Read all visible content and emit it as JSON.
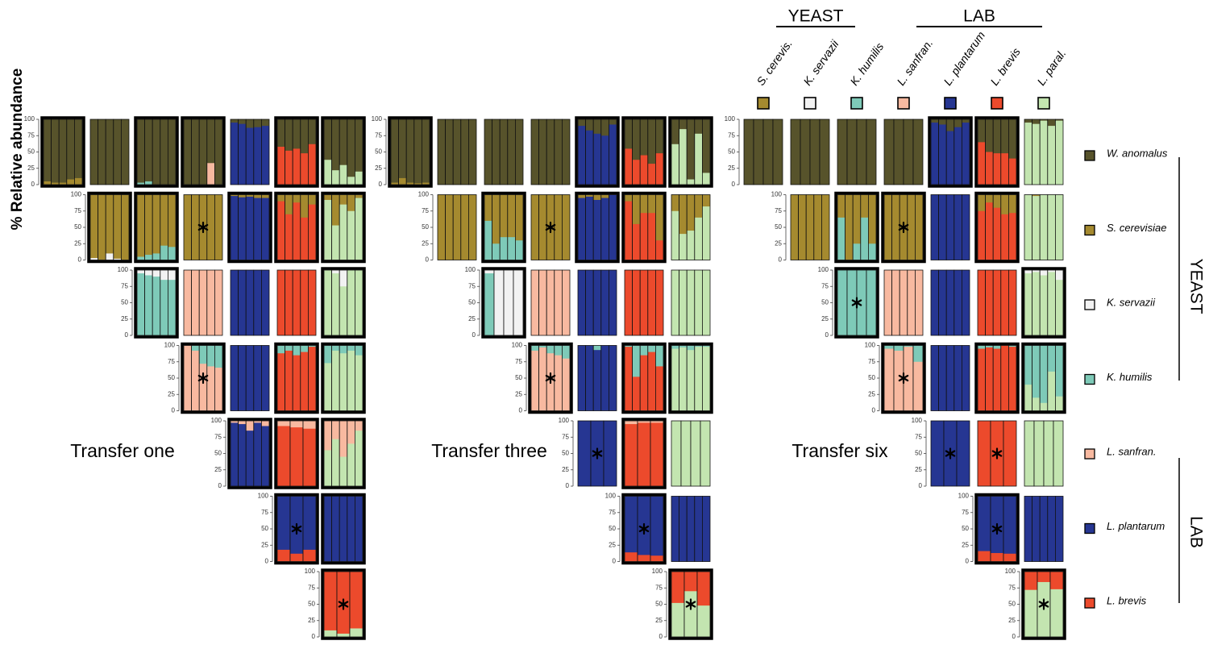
{
  "chart_data": {
    "type": "pairwise-stacked-bar-grid",
    "ylabel": "% Relative abundance",
    "ylim": [
      0,
      100
    ],
    "yticks": [
      0,
      25,
      50,
      75,
      100
    ],
    "groups": [
      {
        "label": "YEAST"
      },
      {
        "label": "LAB"
      }
    ],
    "columns": [
      {
        "label": "S. cerevis.",
        "color": "#a58a2f"
      },
      {
        "label": "K. servazii",
        "color": "#f2f2f2"
      },
      {
        "label": "K. humilis",
        "color": "#7ecab8"
      },
      {
        "label": "L. sanfran.",
        "color": "#f8b9a0"
      },
      {
        "label": "L. plantarum",
        "color": "#263692"
      },
      {
        "label": "L. brevis",
        "color": "#ec4a2c"
      },
      {
        "label": "L. paral.",
        "color": "#c3e5b0"
      }
    ],
    "legend": [
      {
        "name": "W. anomalus",
        "color": "#57532b"
      },
      {
        "name": "S. cerevisiae",
        "color": "#a58a2f"
      },
      {
        "name": "K. servazii",
        "color": "#f2f2f2"
      },
      {
        "name": "K. humilis",
        "color": "#7ecab8"
      },
      {
        "name": "L. sanfran.",
        "color": "#f8b9a0"
      },
      {
        "name": "L. plantarum",
        "color": "#263692"
      },
      {
        "name": "L. brevis",
        "color": "#ec4a2c"
      }
    ],
    "transfers": [
      {
        "label": "Transfer one",
        "rows": [
          [
            {
              "values": [
                5,
                3,
                3,
                8,
                10
              ],
              "bold": true
            },
            {
              "values": [
                0,
                0,
                0,
                0,
                0
              ],
              "bold": false
            },
            {
              "values": [
                3,
                5,
                0,
                0,
                0
              ],
              "bold": true
            },
            {
              "values": [
                0,
                0,
                0,
                33,
                0
              ],
              "bold": true
            },
            {
              "values": [
                95,
                93,
                87,
                88,
                90
              ],
              "bold": false
            },
            {
              "values": [
                58,
                52,
                55,
                48,
                62
              ],
              "bold": true
            },
            {
              "values": [
                38,
                22,
                30,
                12,
                20
              ],
              "bold": true
            }
          ],
          [
            {
              "values": [
                3,
                0,
                10,
                2,
                0
              ],
              "bold": true
            },
            {
              "values": [
                5,
                8,
                10,
                22,
                20
              ],
              "bold": true
            },
            {
              "values": [
                0,
                0,
                0,
                0,
                0
              ],
              "bold": false,
              "star": true
            },
            {
              "values": [
                98,
                96,
                97,
                95,
                95
              ],
              "bold": true
            },
            {
              "values": [
                90,
                70,
                88,
                65,
                85
              ],
              "bold": true
            },
            {
              "values": [
                92,
                53,
                85,
                75,
                95
              ],
              "bold": true
            }
          ],
          [
            {
              "values": [
                95,
                92,
                90,
                85,
                85
              ],
              "bold": true
            },
            {
              "values": [
                100,
                100,
                100,
                100,
                100
              ],
              "bold": false
            },
            {
              "values": [
                100,
                100,
                100,
                100,
                100
              ],
              "bold": false
            },
            {
              "values": [
                100,
                100,
                100,
                100,
                100
              ],
              "bold": false
            },
            {
              "values": [
                100,
                95,
                75,
                100,
                100
              ],
              "bold": true
            }
          ],
          [
            {
              "values": [
                100,
                92,
                72,
                68,
                66
              ],
              "bold": true,
              "star": true
            },
            {
              "values": [
                100,
                100,
                100,
                100,
                100
              ],
              "bold": false
            },
            {
              "values": [
                88,
                92,
                85,
                90,
                98
              ],
              "bold": true
            },
            {
              "values": [
                73,
                92,
                88,
                92,
                85
              ],
              "bold": true
            }
          ],
          [
            {
              "values": [
                97,
                95,
                85,
                97,
                92
              ],
              "bold": true
            },
            {
              "values": [
                92,
                90,
                88
              ],
              "bold": true
            },
            {
              "values": [
                55,
                72,
                45,
                65,
                85
              ],
              "bold": true
            }
          ],
          [
            {
              "values": [
                18,
                12,
                18
              ],
              "bold": true,
              "star": true
            },
            {
              "values": [
                0,
                0,
                0,
                0,
                0
              ],
              "bold": true
            }
          ],
          [
            {
              "values": [
                10,
                5,
                13
              ],
              "bold": true,
              "star": true
            }
          ]
        ]
      },
      {
        "label": "Transfer three",
        "rows": [
          [
            {
              "values": [
                3,
                10,
                3,
                2,
                3
              ],
              "bold": true
            },
            {
              "values": [
                0,
                0,
                0,
                0,
                0
              ],
              "bold": false
            },
            {
              "values": [
                0,
                0,
                0,
                0,
                0
              ],
              "bold": false
            },
            {
              "values": [
                0,
                0,
                0,
                0,
                0
              ],
              "bold": false
            },
            {
              "values": [
                90,
                83,
                78,
                75,
                92
              ],
              "bold": true
            },
            {
              "values": [
                55,
                38,
                45,
                32,
                48
              ],
              "bold": true
            },
            {
              "values": [
                62,
                85,
                8,
                78,
                18
              ],
              "bold": true
            }
          ],
          [
            {
              "values": [
                0,
                0,
                0,
                0,
                0
              ],
              "bold": false
            },
            {
              "values": [
                60,
                25,
                35,
                35,
                30
              ],
              "bold": true
            },
            {
              "values": [
                0,
                0,
                0,
                0,
                0
              ],
              "bold": false,
              "star": true
            },
            {
              "values": [
                95,
                97,
                92,
                95,
                100
              ],
              "bold": true
            },
            {
              "values": [
                90,
                55,
                72,
                72,
                30
              ],
              "bold": true
            },
            {
              "values": [
                75,
                40,
                45,
                65,
                82
              ],
              "bold": false
            }
          ],
          [
            {
              "values": [
                95,
                0,
                0,
                0
              ],
              "bold": true
            },
            {
              "values": [
                100,
                100,
                100,
                100,
                100
              ],
              "bold": false
            },
            {
              "values": [
                100,
                100,
                100,
                100,
                100
              ],
              "bold": false
            },
            {
              "values": [
                100,
                100,
                100,
                100,
                100
              ],
              "bold": false
            },
            {
              "values": [
                100,
                100,
                100,
                100,
                100
              ],
              "bold": false
            }
          ],
          [
            {
              "values": [
                92,
                97,
                88,
                85,
                80
              ],
              "bold": true,
              "star": true
            },
            {
              "values": [
                100,
                100,
                93,
                100,
                100
              ],
              "bold": false
            },
            {
              "values": [
                98,
                52,
                85,
                90,
                68
              ],
              "bold": true
            },
            {
              "values": [
                95,
                97,
                93,
                98,
                98
              ],
              "bold": true
            }
          ],
          [
            {
              "values": [
                100,
                100,
                100
              ],
              "bold": false,
              "star": true
            },
            {
              "values": [
                95,
                97,
                97
              ],
              "bold": true
            },
            {
              "values": [
                100,
                100,
                100,
                100
              ],
              "bold": false
            }
          ],
          [
            {
              "values": [
                14,
                10,
                9
              ],
              "bold": true,
              "star": true
            },
            {
              "values": [
                0,
                0,
                0,
                0,
                0
              ],
              "bold": false
            }
          ],
          [
            {
              "values": [
                52,
                70,
                48
              ],
              "bold": true,
              "star": true
            }
          ]
        ]
      },
      {
        "label": "Transfer six",
        "rows": [
          [
            {
              "values": [
                0,
                0,
                0,
                0
              ],
              "bold": false
            },
            {
              "values": [
                0,
                0,
                0,
                0
              ],
              "bold": false
            },
            {
              "values": [
                0,
                0,
                0,
                0
              ],
              "bold": false
            },
            {
              "values": [
                0,
                0,
                0,
                0
              ],
              "bold": false
            },
            {
              "values": [
                95,
                92,
                82,
                88,
                95
              ],
              "bold": true
            },
            {
              "values": [
                65,
                50,
                48,
                48,
                40
              ],
              "bold": true
            },
            {
              "values": [
                95,
                93,
                98,
                90,
                98
              ],
              "bold": false
            }
          ],
          [
            {
              "values": [
                0,
                0,
                0,
                0,
                0
              ],
              "bold": false
            },
            {
              "values": [
                65,
                0,
                25,
                65,
                25
              ],
              "bold": true
            },
            {
              "values": [
                0,
                0,
                0,
                0,
                0
              ],
              "bold": true,
              "star": true
            },
            {
              "values": [
                100,
                100,
                100,
                100,
                100
              ],
              "bold": false
            },
            {
              "values": [
                75,
                88,
                80,
                70,
                72
              ],
              "bold": true
            },
            {
              "values": [
                100,
                98,
                100,
                100,
                100
              ],
              "bold": false
            }
          ],
          [
            {
              "values": [
                100,
                100,
                100,
                100
              ],
              "bold": true,
              "star": true
            },
            {
              "values": [
                100,
                100,
                100,
                100,
                100
              ],
              "bold": false
            },
            {
              "values": [
                100,
                100,
                100,
                100,
                100
              ],
              "bold": false
            },
            {
              "values": [
                100,
                100,
                100,
                100,
                100
              ],
              "bold": false
            },
            {
              "values": [
                95,
                97,
                92,
                97,
                85
              ],
              "bold": true
            }
          ],
          [
            {
              "values": [
                95,
                92,
                98,
                75
              ],
              "bold": true,
              "star": true
            },
            {
              "values": [
                100,
                100,
                100,
                100,
                100
              ],
              "bold": false
            },
            {
              "values": [
                95,
                97,
                95,
                100,
                98
              ],
              "bold": true
            },
            {
              "values": [
                40,
                20,
                12,
                60,
                22
              ],
              "bold": true
            }
          ],
          [
            {
              "values": [
                100,
                100,
                100
              ],
              "bold": false,
              "star": true
            },
            {
              "values": [
                100,
                100,
                100
              ],
              "bold": false,
              "star": true
            },
            {
              "values": [
                100,
                100,
                100,
                100
              ],
              "bold": false
            }
          ],
          [
            {
              "values": [
                16,
                13,
                12
              ],
              "bold": true,
              "star": true
            },
            {
              "values": [
                0,
                0,
                0,
                0,
                0
              ],
              "bold": false
            }
          ],
          [
            {
              "values": [
                72,
                84,
                73
              ],
              "bold": true,
              "star": true
            }
          ]
        ]
      }
    ]
  }
}
